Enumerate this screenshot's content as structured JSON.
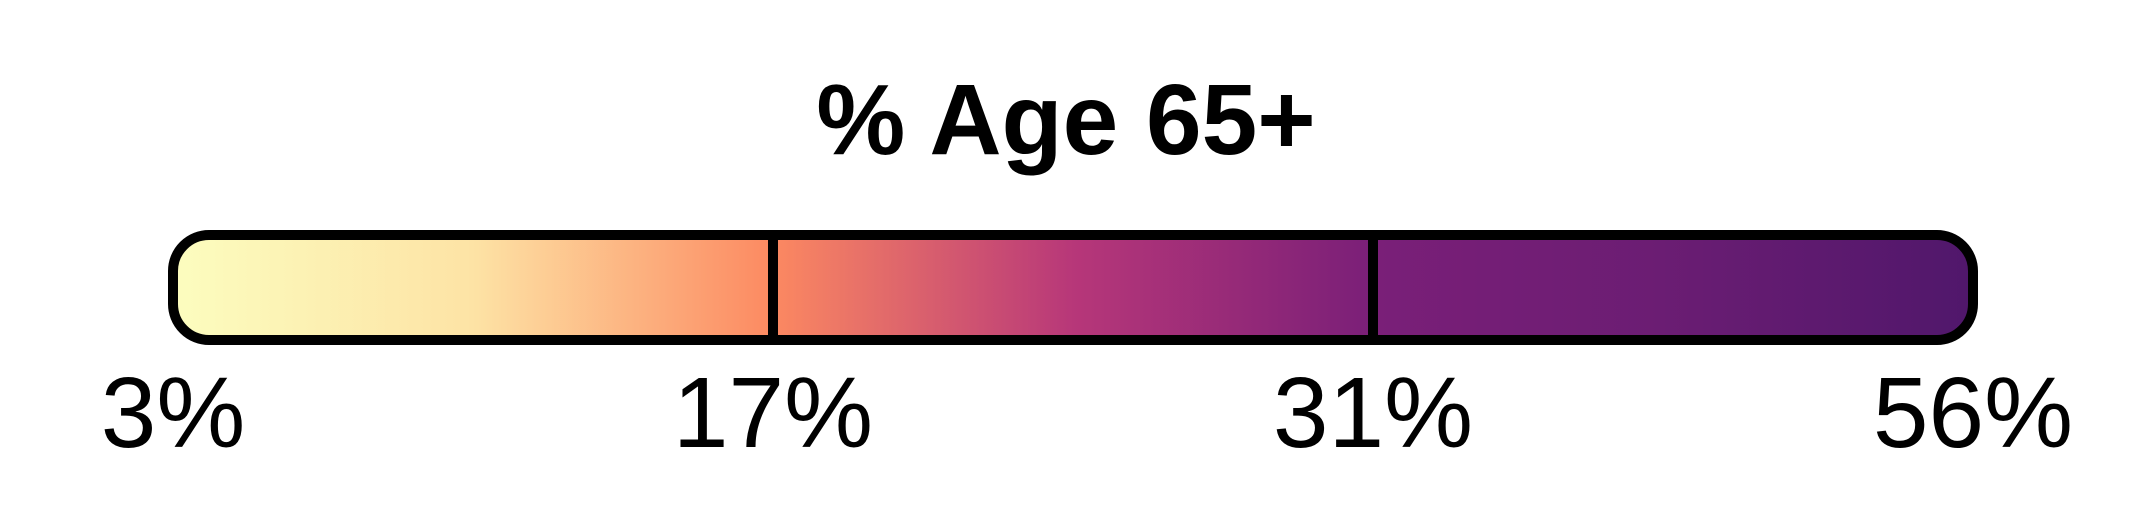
{
  "chart_data": {
    "type": "color-legend",
    "title": "% Age 65+",
    "tick_labels": [
      "3%",
      "17%",
      "31%",
      "56%"
    ],
    "breaks": [
      3,
      17,
      31,
      56
    ],
    "unit": "%",
    "colormap": "magma",
    "gradient_stops": [
      {
        "value": 3,
        "color": "#fcfdbf"
      },
      {
        "value": 10,
        "color": "#fde3a5"
      },
      {
        "value": 17,
        "color": "#fc8961"
      },
      {
        "value": 24,
        "color": "#b73779"
      },
      {
        "value": 31,
        "color": "#7a1f78"
      },
      {
        "value": 43,
        "color": "#6b1d73"
      },
      {
        "value": 56,
        "color": "#50176b"
      }
    ],
    "frame_color": "#000000"
  }
}
